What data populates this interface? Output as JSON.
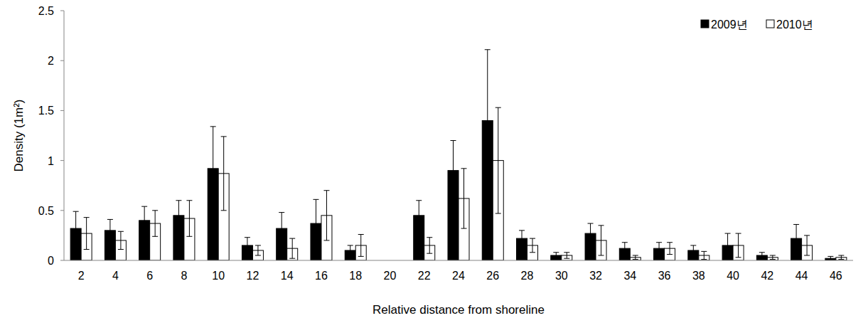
{
  "chart_data": {
    "type": "bar",
    "x_label": "Relative distance from shoreline",
    "y_label": "Density (1m²)",
    "categories": [
      "2",
      "4",
      "6",
      "8",
      "10",
      "12",
      "14",
      "16",
      "18",
      "20",
      "22",
      "24",
      "26",
      "28",
      "30",
      "32",
      "34",
      "36",
      "38",
      "40",
      "42",
      "44",
      "46"
    ],
    "series": [
      {
        "name": "2009년",
        "color": "#000000",
        "values": [
          0.32,
          0.3,
          0.4,
          0.45,
          0.92,
          0.15,
          0.32,
          0.37,
          0.1,
          0,
          0.45,
          0.9,
          1.4,
          0.22,
          0.05,
          0.27,
          0.12,
          0.12,
          0.1,
          0.15,
          0.05,
          0.22,
          0.02
        ],
        "errors": [
          0.17,
          0.11,
          0.14,
          0.15,
          0.42,
          0.08,
          0.16,
          0.24,
          0.05,
          0,
          0.15,
          0.3,
          0.71,
          0.08,
          0.03,
          0.1,
          0.06,
          0.06,
          0.05,
          0.12,
          0.03,
          0.14,
          0.02
        ]
      },
      {
        "name": "2010년",
        "color": "#ffffff",
        "values": [
          0.27,
          0.2,
          0.37,
          0.42,
          0.87,
          0.1,
          0.12,
          0.45,
          0.15,
          0,
          0.15,
          0.62,
          1.0,
          0.15,
          0.05,
          0.2,
          0.03,
          0.12,
          0.05,
          0.15,
          0.03,
          0.15,
          0.03
        ],
        "errors": [
          0.16,
          0.09,
          0.13,
          0.18,
          0.37,
          0.05,
          0.1,
          0.25,
          0.11,
          0,
          0.08,
          0.3,
          0.53,
          0.07,
          0.03,
          0.15,
          0.02,
          0.06,
          0.04,
          0.12,
          0.02,
          0.1,
          0.02
        ]
      }
    ],
    "ylim": [
      0,
      2.5
    ],
    "yticks": [
      0,
      0.5,
      1,
      1.5,
      2,
      2.5
    ],
    "grid": false,
    "legend": "upper right"
  }
}
